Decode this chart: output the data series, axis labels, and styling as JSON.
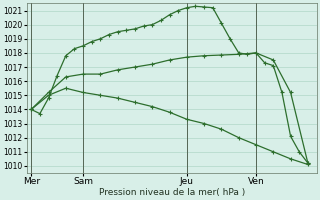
{
  "background_color": "#d8efe8",
  "grid_color": "#b0d8c8",
  "line_color": "#2d6e2d",
  "title": "Pression niveau de la mer( hPa )",
  "ylim": [
    1009.5,
    1021.5
  ],
  "yticks": [
    1010,
    1011,
    1012,
    1013,
    1014,
    1015,
    1016,
    1017,
    1018,
    1019,
    1020,
    1021
  ],
  "day_labels": [
    "Mer",
    "Sam",
    "Jeu",
    "Ven"
  ],
  "day_positions": [
    0,
    6,
    18,
    26
  ],
  "xlim": [
    -0.5,
    33
  ],
  "line1_x": [
    0,
    1,
    2,
    3,
    4,
    5,
    6,
    7,
    8,
    9,
    10,
    11,
    12,
    13,
    14,
    15,
    16,
    17,
    18,
    19,
    20,
    21,
    22,
    23,
    24,
    25,
    26,
    27,
    28,
    29,
    30,
    31,
    32
  ],
  "line1_y": [
    1014.0,
    1013.7,
    1014.8,
    1016.4,
    1017.8,
    1018.3,
    1018.5,
    1018.8,
    1019.0,
    1019.3,
    1019.5,
    1019.6,
    1019.7,
    1019.9,
    1020.0,
    1020.3,
    1020.7,
    1021.0,
    1021.2,
    1021.3,
    1021.25,
    1021.2,
    1020.1,
    1019.0,
    1018.0,
    1017.9,
    1018.0,
    1017.3,
    1017.1,
    1015.2,
    1012.1,
    1011.0,
    1010.2
  ],
  "line2_x": [
    0,
    2,
    4,
    6,
    8,
    10,
    12,
    14,
    16,
    18,
    20,
    22,
    24,
    26,
    28,
    30,
    32
  ],
  "line2_y": [
    1014.0,
    1015.0,
    1015.5,
    1015.2,
    1015.0,
    1014.8,
    1014.5,
    1014.2,
    1013.8,
    1013.3,
    1013.0,
    1012.6,
    1012.0,
    1011.5,
    1011.0,
    1010.5,
    1010.1
  ],
  "line3_x": [
    0,
    2,
    4,
    6,
    8,
    10,
    12,
    14,
    16,
    18,
    20,
    22,
    24,
    26,
    28,
    30,
    32
  ],
  "line3_y": [
    1014.0,
    1015.2,
    1016.3,
    1016.5,
    1016.5,
    1016.8,
    1017.0,
    1017.2,
    1017.5,
    1017.7,
    1017.8,
    1017.85,
    1017.9,
    1018.0,
    1017.5,
    1015.2,
    1010.2
  ]
}
